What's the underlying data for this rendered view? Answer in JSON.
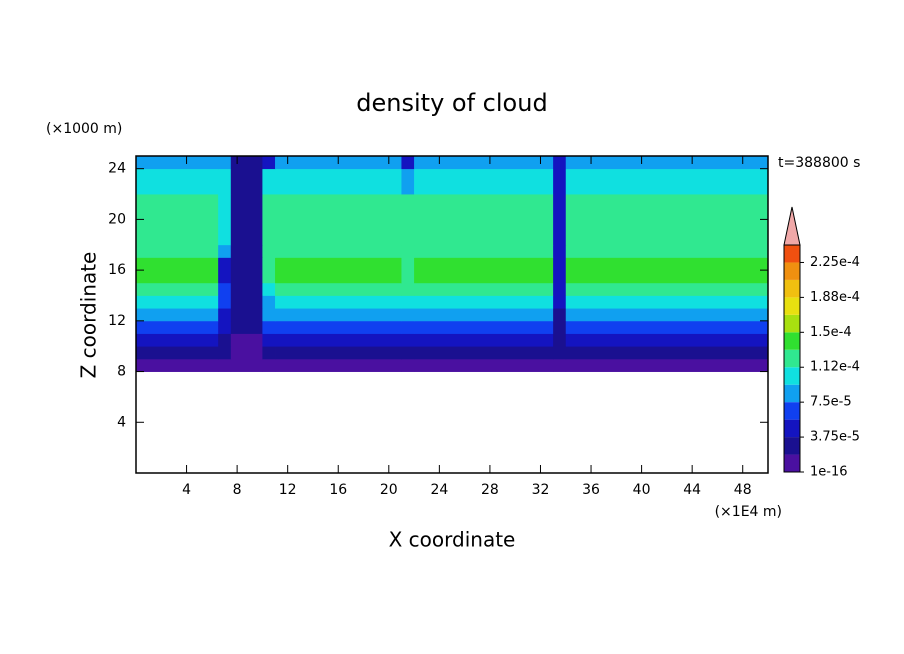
{
  "chart_data": {
    "type": "contour",
    "title": "density of cloud",
    "xlabel": "X coordinate",
    "ylabel": "Z coordinate",
    "x_unit": "(×1E4 m)",
    "y_unit": "(×1000 m)",
    "time_label": "t=388800 s",
    "xlim": [
      0,
      50
    ],
    "ylim": [
      0,
      25
    ],
    "xticks": [
      4,
      8,
      12,
      16,
      20,
      24,
      28,
      32,
      36,
      40,
      44,
      48
    ],
    "yticks": [
      4,
      8,
      12,
      16,
      20,
      24
    ],
    "x_edges": [
      0,
      6.5,
      7.5,
      10,
      11,
      21,
      22,
      33,
      34,
      50
    ],
    "z_edges": [
      8,
      9,
      10,
      11,
      12,
      13,
      14,
      15,
      17,
      18,
      22,
      24,
      25
    ],
    "values": [
      [
        1e-05,
        1e-05,
        1e-05,
        1e-05,
        1e-05,
        1e-05,
        1e-05,
        1e-05,
        1e-05
      ],
      [
        3e-05,
        2e-05,
        1e-05,
        3e-05,
        3e-05,
        2e-05,
        3e-05,
        2e-05,
        3e-05
      ],
      [
        5e-05,
        3e-05,
        1e-05,
        4e-05,
        5e-05,
        4e-05,
        5e-05,
        2e-05,
        5e-05
      ],
      [
        7e-05,
        4e-05,
        2e-05,
        6e-05,
        7e-05,
        6e-05,
        7e-05,
        3e-05,
        7e-05
      ],
      [
        9e-05,
        5e-05,
        2e-05,
        8e-05,
        9e-05,
        8e-05,
        9e-05,
        3e-05,
        9e-05
      ],
      [
        0.000105,
        6e-05,
        2e-05,
        9e-05,
        0.000105,
        0.0001,
        0.000105,
        4e-05,
        0.000105
      ],
      [
        0.00012,
        7e-05,
        2e-05,
        0.00011,
        0.00012,
        0.000115,
        0.00012,
        4e-05,
        0.00012
      ],
      [
        0.00014,
        4e-05,
        2e-05,
        0.00012,
        0.00014,
        0.00012,
        0.00014,
        4e-05,
        0.00014
      ],
      [
        0.00012,
        8e-05,
        2e-05,
        0.00012,
        0.00012,
        0.00012,
        0.00012,
        4e-05,
        0.00012
      ],
      [
        0.00012,
        0.0001,
        2e-05,
        0.00012,
        0.00012,
        0.00012,
        0.00012,
        4e-05,
        0.00012
      ],
      [
        0.0001,
        0.0001,
        2e-05,
        0.0001,
        0.0001,
        9e-05,
        0.0001,
        4e-05,
        0.0001
      ],
      [
        8.5e-05,
        8.5e-05,
        2e-05,
        4e-05,
        8.5e-05,
        5e-05,
        8.5e-05,
        4e-05,
        8.5e-05
      ]
    ],
    "levels": [
      1e-16,
      1.875e-05,
      3.75e-05,
      5.625e-05,
      7.5e-05,
      9.375e-05,
      0.0001125,
      0.00013125,
      0.00015,
      0.00016875,
      0.0001875,
      0.00020625,
      0.000225,
      0.00024375
    ],
    "colors": [
      "#4a10a0",
      "#1a1090",
      "#1414c0",
      "#1040f0",
      "#10a0f0",
      "#10e0e0",
      "#30e890",
      "#30e030",
      "#a8e010",
      "#e8e010",
      "#f0c010",
      "#f09010",
      "#f05010",
      "#e81010"
    ],
    "extend_color": "#f0a8a8",
    "colorbar_lim": [
      1e-16,
      0.00024375
    ],
    "colorbar_ticks": [
      {
        "value": 1e-16,
        "label": "1e-16"
      },
      {
        "value": 3.75e-05,
        "label": "3.75e-5"
      },
      {
        "value": 7.5e-05,
        "label": "7.5e-5"
      },
      {
        "value": 0.0001125,
        "label": "1.12e-4"
      },
      {
        "value": 0.00015,
        "label": "1.5e-4"
      },
      {
        "value": 0.0001875,
        "label": "1.88e-4"
      },
      {
        "value": 0.000225,
        "label": "2.25e-4"
      }
    ]
  }
}
